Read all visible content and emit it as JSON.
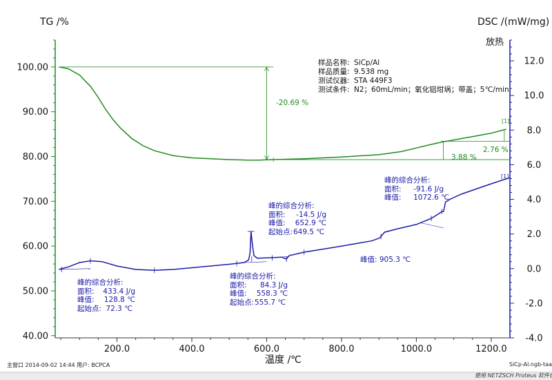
{
  "chart_data": {
    "type": "line",
    "x_label": "温度 /℃",
    "xlim": [
      35,
      1250
    ],
    "x_ticks": [
      "200.0",
      "400.0",
      "600.0",
      "800.0",
      "1000.0",
      "1200.0"
    ],
    "y_left": {
      "label": "TG /%",
      "lim": [
        39.5,
        106
      ],
      "ticks": [
        "40.00",
        "50.00",
        "60.00",
        "70.00",
        "80.00",
        "90.00",
        "100.00"
      ],
      "color": "#1e8a1e"
    },
    "y_right": {
      "label": "DSC /(mW/mg)",
      "sublabel": "放热",
      "lim": [
        -4.0,
        13.2
      ],
      "ticks": [
        "-4.0",
        "-2.0",
        "0.0",
        "2.0",
        "4.0",
        "6.0",
        "8.0",
        "10.0",
        "12.0"
      ],
      "color": "#1a1aa8"
    },
    "grid": false,
    "series": [
      {
        "axis": "left",
        "color": "#1e8a1e",
        "x": [
          45,
          70,
          100,
          130,
          150,
          170,
          190,
          210,
          240,
          270,
          300,
          350,
          400,
          450,
          500,
          550,
          580,
          620,
          700,
          800,
          900,
          960,
          1000,
          1040,
          1072,
          1080,
          1120,
          1160,
          1200,
          1240
        ],
        "y": [
          100.0,
          99.6,
          98.2,
          95.6,
          93.2,
          90.5,
          88.2,
          86.3,
          84.0,
          82.4,
          81.3,
          80.2,
          79.7,
          79.5,
          79.3,
          79.2,
          79.2,
          79.3,
          79.5,
          79.9,
          80.4,
          81.1,
          81.9,
          82.7,
          83.3,
          83.4,
          84.0,
          84.6,
          85.2,
          86.1
        ]
      },
      {
        "axis": "right",
        "color": "#1a1aa8",
        "x": [
          45,
          70,
          100,
          128.8,
          160,
          200,
          250,
          300,
          350,
          400,
          450,
          500,
          540,
          552,
          555.7,
          558.3,
          562,
          566,
          575,
          600,
          640,
          652.9,
          660,
          700,
          800,
          880,
          900,
          905.3,
          915,
          950,
          1000,
          1040,
          1062,
          1068,
          1072.6,
          1078,
          1090,
          1120,
          1160,
          1200,
          1250
        ],
        "y": [
          -0.05,
          0.1,
          0.35,
          0.45,
          0.4,
          0.15,
          -0.05,
          -0.1,
          -0.05,
          0.05,
          0.15,
          0.25,
          0.35,
          0.5,
          0.9,
          2.15,
          1.4,
          0.75,
          0.6,
          0.62,
          0.66,
          0.55,
          0.75,
          0.95,
          1.3,
          1.6,
          1.75,
          1.85,
          2.1,
          2.3,
          2.55,
          2.9,
          3.2,
          3.3,
          3.3,
          3.85,
          4.0,
          4.3,
          4.6,
          4.9,
          5.25
        ]
      }
    ],
    "annotations": {
      "tg_loss": "-20.69 %",
      "tg_gain_1": "3.88 %",
      "tg_gain_2": "2.76 %",
      "curve_end_tag_1": "[1]",
      "curve_end_tag_2": "[1]",
      "dsc_peak_905": "峰值:  905.3 ℃"
    },
    "peaks": [
      {
        "title": "峰的综合分析:",
        "area_key": "面积:",
        "area": "433.4 J/g",
        "peak_key": "峰值:",
        "peak": "128.8 ℃",
        "onset_key": "起始点:",
        "onset": "72.3 ℃"
      },
      {
        "title": "峰的综合分析:",
        "area_key": "面积:",
        "area": "84.3 J/g",
        "peak_key": "峰值:",
        "peak": "558.3 ℃",
        "onset_key": "起始点:",
        "onset": "555.7 ℃"
      },
      {
        "title": "峰的综合分析:",
        "area_key": "面积:",
        "area": "-14.5 J/g",
        "peak_key": "峰值:",
        "peak": "652.9 ℃",
        "onset_key": "起始点:",
        "onset": "649.5 ℃"
      },
      {
        "title": "峰的综合分析:",
        "area_key": "面积:",
        "area": "-91.6 J/g",
        "peak_key": "峰值:",
        "peak": "1072.6 ℃"
      }
    ]
  },
  "sample_info": [
    {
      "key": "样品名称:",
      "value": "SiCp/Al"
    },
    {
      "key": "样品质量:",
      "value": "9.538 mg"
    },
    {
      "key": "测试仪器:",
      "value": "STA 449F3"
    },
    {
      "key": "测试条件:",
      "value": "N2；60mL/min；氧化铝坩埚；带盖；5℃/min."
    }
  ],
  "footer": {
    "left": "主窗口    2014-09-02 14:44    用户: BCPCA",
    "right": "SiCp-Al.ngb-taa",
    "credit": "使用 NETZSCH Proteus 软件创建"
  }
}
